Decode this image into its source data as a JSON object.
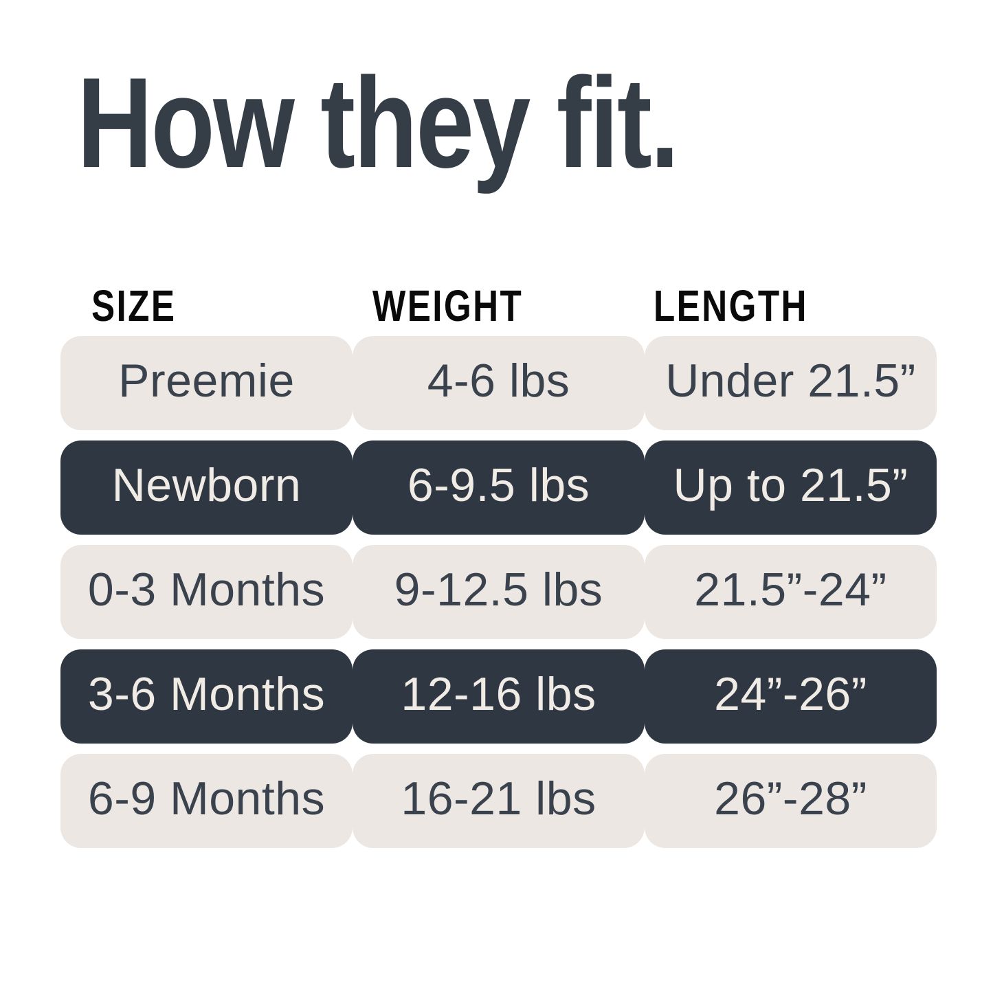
{
  "chart_data": {
    "type": "table",
    "title": "How they fit.",
    "columns": [
      "SIZE",
      "WEIGHT",
      "LENGTH"
    ],
    "rows": [
      [
        "Preemie",
        "4-6 lbs",
        "Under 21.5”"
      ],
      [
        "Newborn",
        "6-9.5 lbs",
        "Up to 21.5”"
      ],
      [
        "0-3 Months",
        "9-12.5 lbs",
        "21.5”-24”"
      ],
      [
        "3-6 Months",
        "12-16 lbs",
        "24”-26”"
      ],
      [
        "6-9 Months",
        "16-21 lbs",
        "26”-28”"
      ]
    ],
    "row_variants": [
      "light",
      "dark",
      "light",
      "dark",
      "light"
    ],
    "layout": {
      "legend": "none",
      "grid": "off",
      "row_style": "alternating rounded pill rows"
    },
    "colors": {
      "background": "#ffffff",
      "title_text": "#353d47",
      "header_text": "#0a0a0a",
      "dark_row_bg": "#2f3842",
      "dark_row_text": "#f1ebe6",
      "light_row_bg": "#ece7e2",
      "light_row_text": "#3a424d"
    }
  }
}
